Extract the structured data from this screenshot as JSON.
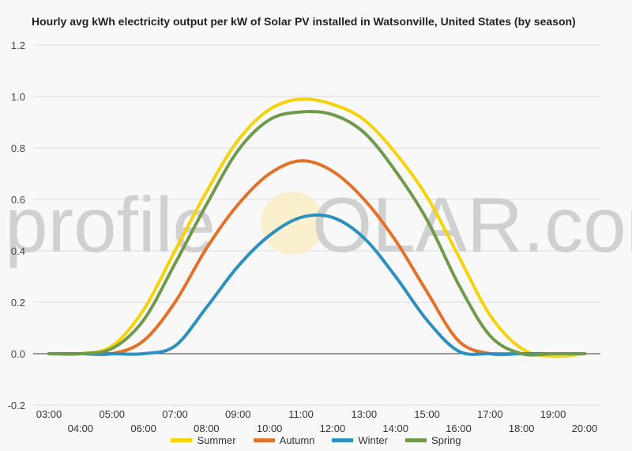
{
  "chart_title": "Hourly avg kWh electricity output per kW of Solar PV installed in Watsonville, United States (by season)",
  "watermark": {
    "left": "profile",
    "sun_letter": "S",
    "right": "OLAR.com"
  },
  "colors": {
    "summer": "#f5d20a",
    "autumn": "#e3712a",
    "winter": "#2e90bf",
    "spring": "#6f9a4c",
    "grid": "#dcdcdc",
    "zero_line": "#333333"
  },
  "chart_data": {
    "type": "line",
    "title": "Hourly avg kWh electricity output per kW of Solar PV installed in Watsonville, United States (by season)",
    "xlabel": "",
    "ylabel": "",
    "ylim": [
      -0.2,
      1.2
    ],
    "yticks": [
      1.2,
      1.0,
      0.8,
      0.6,
      0.4,
      0.2,
      0.0,
      -0.2
    ],
    "ytick_labels": [
      "1.2",
      "1.0",
      "0.8",
      "0.6",
      "0.4",
      "0.2",
      "0.0",
      "-0.2"
    ],
    "x": [
      "03:00",
      "04:00",
      "05:00",
      "06:00",
      "07:00",
      "08:00",
      "09:00",
      "10:00",
      "11:00",
      "12:00",
      "13:00",
      "14:00",
      "15:00",
      "16:00",
      "17:00",
      "18:00",
      "19:00",
      "20:00"
    ],
    "grid": true,
    "legend_position": "bottom",
    "series": [
      {
        "name": "Summer",
        "color_key": "summer",
        "values": [
          0.0,
          0.0,
          0.03,
          0.17,
          0.4,
          0.63,
          0.83,
          0.95,
          0.99,
          0.97,
          0.91,
          0.78,
          0.61,
          0.38,
          0.15,
          0.02,
          -0.01,
          0.0
        ]
      },
      {
        "name": "Autumn",
        "color_key": "autumn",
        "values": [
          0.0,
          0.0,
          0.0,
          0.05,
          0.2,
          0.41,
          0.58,
          0.7,
          0.75,
          0.71,
          0.6,
          0.44,
          0.24,
          0.05,
          0.0,
          0.0,
          0.0,
          0.0
        ]
      },
      {
        "name": "Winter",
        "color_key": "winter",
        "values": [
          0.0,
          0.0,
          0.0,
          0.0,
          0.03,
          0.18,
          0.34,
          0.46,
          0.53,
          0.53,
          0.45,
          0.3,
          0.13,
          0.01,
          0.0,
          0.0,
          0.0,
          0.0
        ]
      },
      {
        "name": "Spring",
        "color_key": "spring",
        "values": [
          0.0,
          0.0,
          0.02,
          0.13,
          0.35,
          0.58,
          0.79,
          0.91,
          0.94,
          0.93,
          0.86,
          0.71,
          0.52,
          0.27,
          0.07,
          0.0,
          0.0,
          0.0
        ]
      }
    ]
  }
}
